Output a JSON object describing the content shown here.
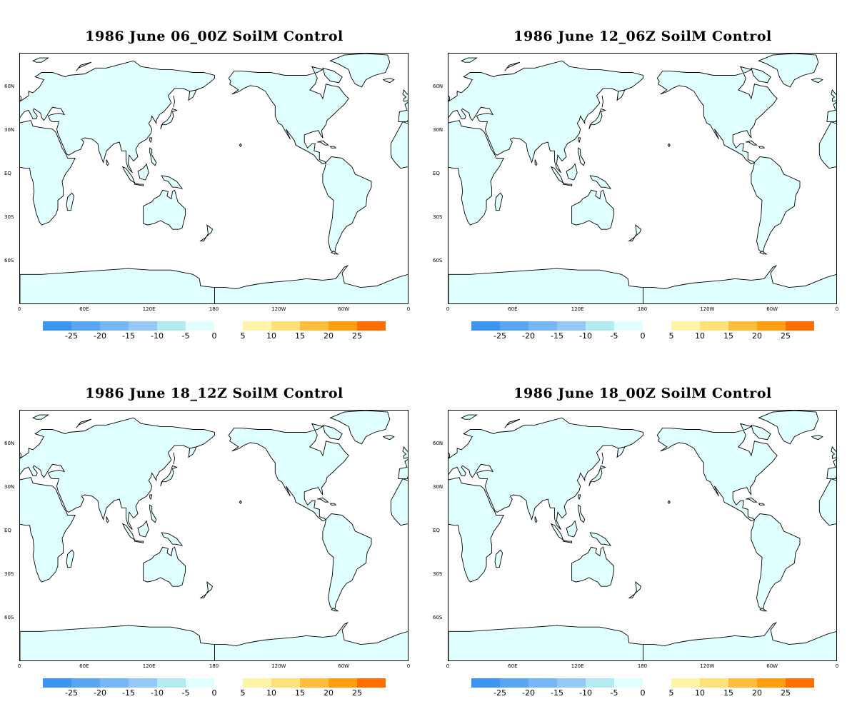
{
  "panels": [
    {
      "title": "1986 June 06_00Z SoilM Control"
    },
    {
      "title": "1986 June 12_06Z SoilM Control"
    },
    {
      "title": "1986 June 18_12Z SoilM Control"
    },
    {
      "title": "1986 June 18_00Z SoilM Control"
    }
  ],
  "map": {
    "projection": "cylindrical equidistant, centered on 180",
    "lat_labels": [
      "60N",
      "30N",
      "EQ",
      "30S",
      "60S"
    ],
    "lon_labels": [
      "0",
      "60E",
      "120E",
      "180",
      "120W",
      "60W",
      "0"
    ],
    "land_fill_color": "#e0ffff",
    "coastline_color": "#000000"
  },
  "legend": {
    "negative": {
      "labels": [
        "-25",
        "-20",
        "-15",
        "-10",
        "-5",
        "0"
      ],
      "colors": [
        "#3c95f0",
        "#5aa5f2",
        "#78b7f5",
        "#96c8f6",
        "#b4eaf2",
        "#e0ffff"
      ]
    },
    "positive": {
      "labels": [
        "5",
        "10",
        "15",
        "20",
        "25"
      ],
      "colors": [
        "#fff5a8",
        "#ffe17a",
        "#ffbd3e",
        "#ff9f10",
        "#ff6f00"
      ]
    }
  }
}
